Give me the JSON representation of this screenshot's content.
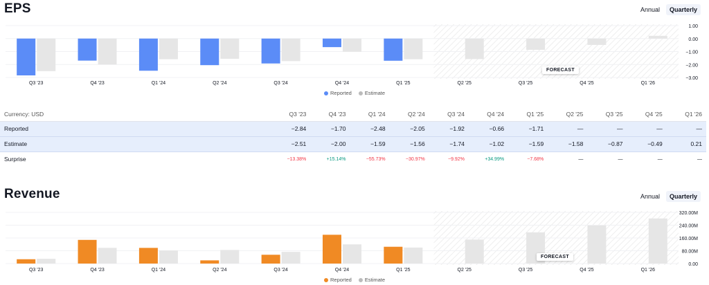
{
  "colors": {
    "reported_eps": "#5b8cf7",
    "reported_rev": "#f08a24",
    "estimate": "#e6e6e6",
    "positive": "#089981",
    "negative": "#f23645"
  },
  "eps_section": {
    "title": "EPS",
    "toggle": {
      "annual": "Annual",
      "quarterly": "Quarterly",
      "selected": "Quarterly"
    },
    "forecast_label": "FORECAST",
    "legend": {
      "reported": "Reported",
      "estimate": "Estimate"
    }
  },
  "revenue_section": {
    "title": "Revenue",
    "toggle": {
      "annual": "Annual",
      "quarterly": "Quarterly",
      "selected": "Quarterly"
    },
    "forecast_label": "FORECAST",
    "legend": {
      "reported": "Reported",
      "estimate": "Estimate"
    }
  },
  "chart_data": [
    {
      "type": "bar",
      "categories": [
        "Q3 '23",
        "Q4 '23",
        "Q1 '24",
        "Q2 '24",
        "Q3 '24",
        "Q4 '24",
        "Q1 '25",
        "Q2 '25",
        "Q3 '25",
        "Q4 '25",
        "Q1 '26"
      ],
      "series": [
        {
          "name": "Reported",
          "values": [
            -2.84,
            -1.7,
            -2.48,
            -2.05,
            -1.92,
            -0.66,
            -1.71,
            null,
            null,
            null,
            null
          ]
        },
        {
          "name": "Estimate",
          "values": [
            -2.51,
            -2.0,
            -1.59,
            -1.56,
            -1.74,
            -1.02,
            -1.59,
            -1.58,
            -0.87,
            -0.49,
            0.21
          ]
        }
      ],
      "title": "EPS",
      "ylim": [
        -3.0,
        1.0
      ],
      "yticks": [
        "1.00",
        "0.00",
        "−1.00",
        "−2.00",
        "−3.00"
      ],
      "forecast_start_index": 7,
      "grid": true,
      "legend": "bottom"
    },
    {
      "type": "bar",
      "categories": [
        "Q3 '23",
        "Q4 '23",
        "Q1 '24",
        "Q2 '24",
        "Q3 '24",
        "Q4 '24",
        "Q1 '25",
        "Q2 '25",
        "Q3 '25",
        "Q4 '25",
        "Q1 '26"
      ],
      "series": [
        {
          "name": "Reported",
          "values": [
            27,
            148,
            98,
            20,
            55,
            180,
            105,
            null,
            null,
            null,
            null
          ]
        },
        {
          "name": "Estimate",
          "values": [
            30,
            98,
            82,
            85,
            73,
            120,
            100,
            150,
            195,
            238,
            282
          ]
        }
      ],
      "title": "Revenue",
      "ylim": [
        0,
        320
      ],
      "yticks": [
        "320.00M",
        "240.00M",
        "160.00M",
        "80.00M",
        "0.00"
      ],
      "forecast_start_index": 7,
      "grid": true,
      "legend": "bottom"
    }
  ],
  "eps_table": {
    "currency_label": "Currency: USD",
    "periods": [
      "Q3 '23",
      "Q4 '23",
      "Q1 '24",
      "Q2 '24",
      "Q3 '24",
      "Q4 '24",
      "Q1 '25",
      "Q2 '25",
      "Q3 '25",
      "Q4 '25",
      "Q1 '26"
    ],
    "rows": [
      {
        "label": "Reported",
        "values": [
          "−2.84",
          "−1.70",
          "−2.48",
          "−2.05",
          "−1.92",
          "−0.66",
          "−1.71",
          "—",
          "—",
          "—",
          "—"
        ]
      },
      {
        "label": "Estimate",
        "values": [
          "−2.51",
          "−2.00",
          "−1.59",
          "−1.56",
          "−1.74",
          "−1.02",
          "−1.59",
          "−1.58",
          "−0.87",
          "−0.49",
          "0.21"
        ]
      },
      {
        "label": "Surprise",
        "values": [
          "−13.38%",
          "+15.14%",
          "−55.73%",
          "−30.97%",
          "−9.92%",
          "+34.99%",
          "−7.68%",
          "—",
          "—",
          "—",
          "—"
        ]
      }
    ]
  }
}
